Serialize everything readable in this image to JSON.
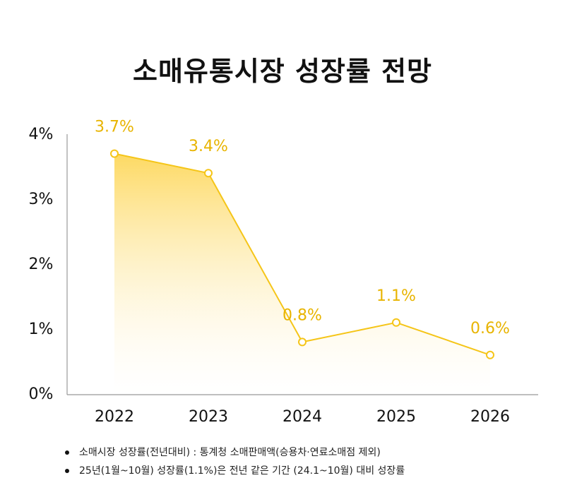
{
  "title": "소매유통시장 성장률 전망",
  "chart_data": {
    "type": "area",
    "categories": [
      "2022",
      "2023",
      "2024",
      "2025",
      "2026"
    ],
    "values": [
      3.7,
      3.4,
      0.8,
      1.1,
      0.6
    ],
    "value_labels": [
      "3.7%",
      "3.4%",
      "0.8%",
      "1.1%",
      "0.6%"
    ],
    "y_ticks": [
      0,
      1,
      2,
      3,
      4
    ],
    "y_tick_labels": [
      "0%",
      "1%",
      "2%",
      "3%",
      "4%"
    ],
    "ylim": [
      0,
      4
    ],
    "xlabel": "",
    "ylabel": "",
    "grid": false,
    "title": "소매유통시장 성장률 전망"
  },
  "notes": [
    "소매시장 성장률(전년대비) : 통계청 소매판매액(승용차·연료소매점 제외)",
    "25년(1월~10월) 성장률(1.1%)은 전년 같은 기간 (24.1~10월) 대비 성장률"
  ],
  "colors": {
    "line": "#F5C518",
    "label": "#E8B400",
    "fill_top": "#FDD75A",
    "fill_bottom": "#FFFFFF",
    "axis": "#999999"
  }
}
